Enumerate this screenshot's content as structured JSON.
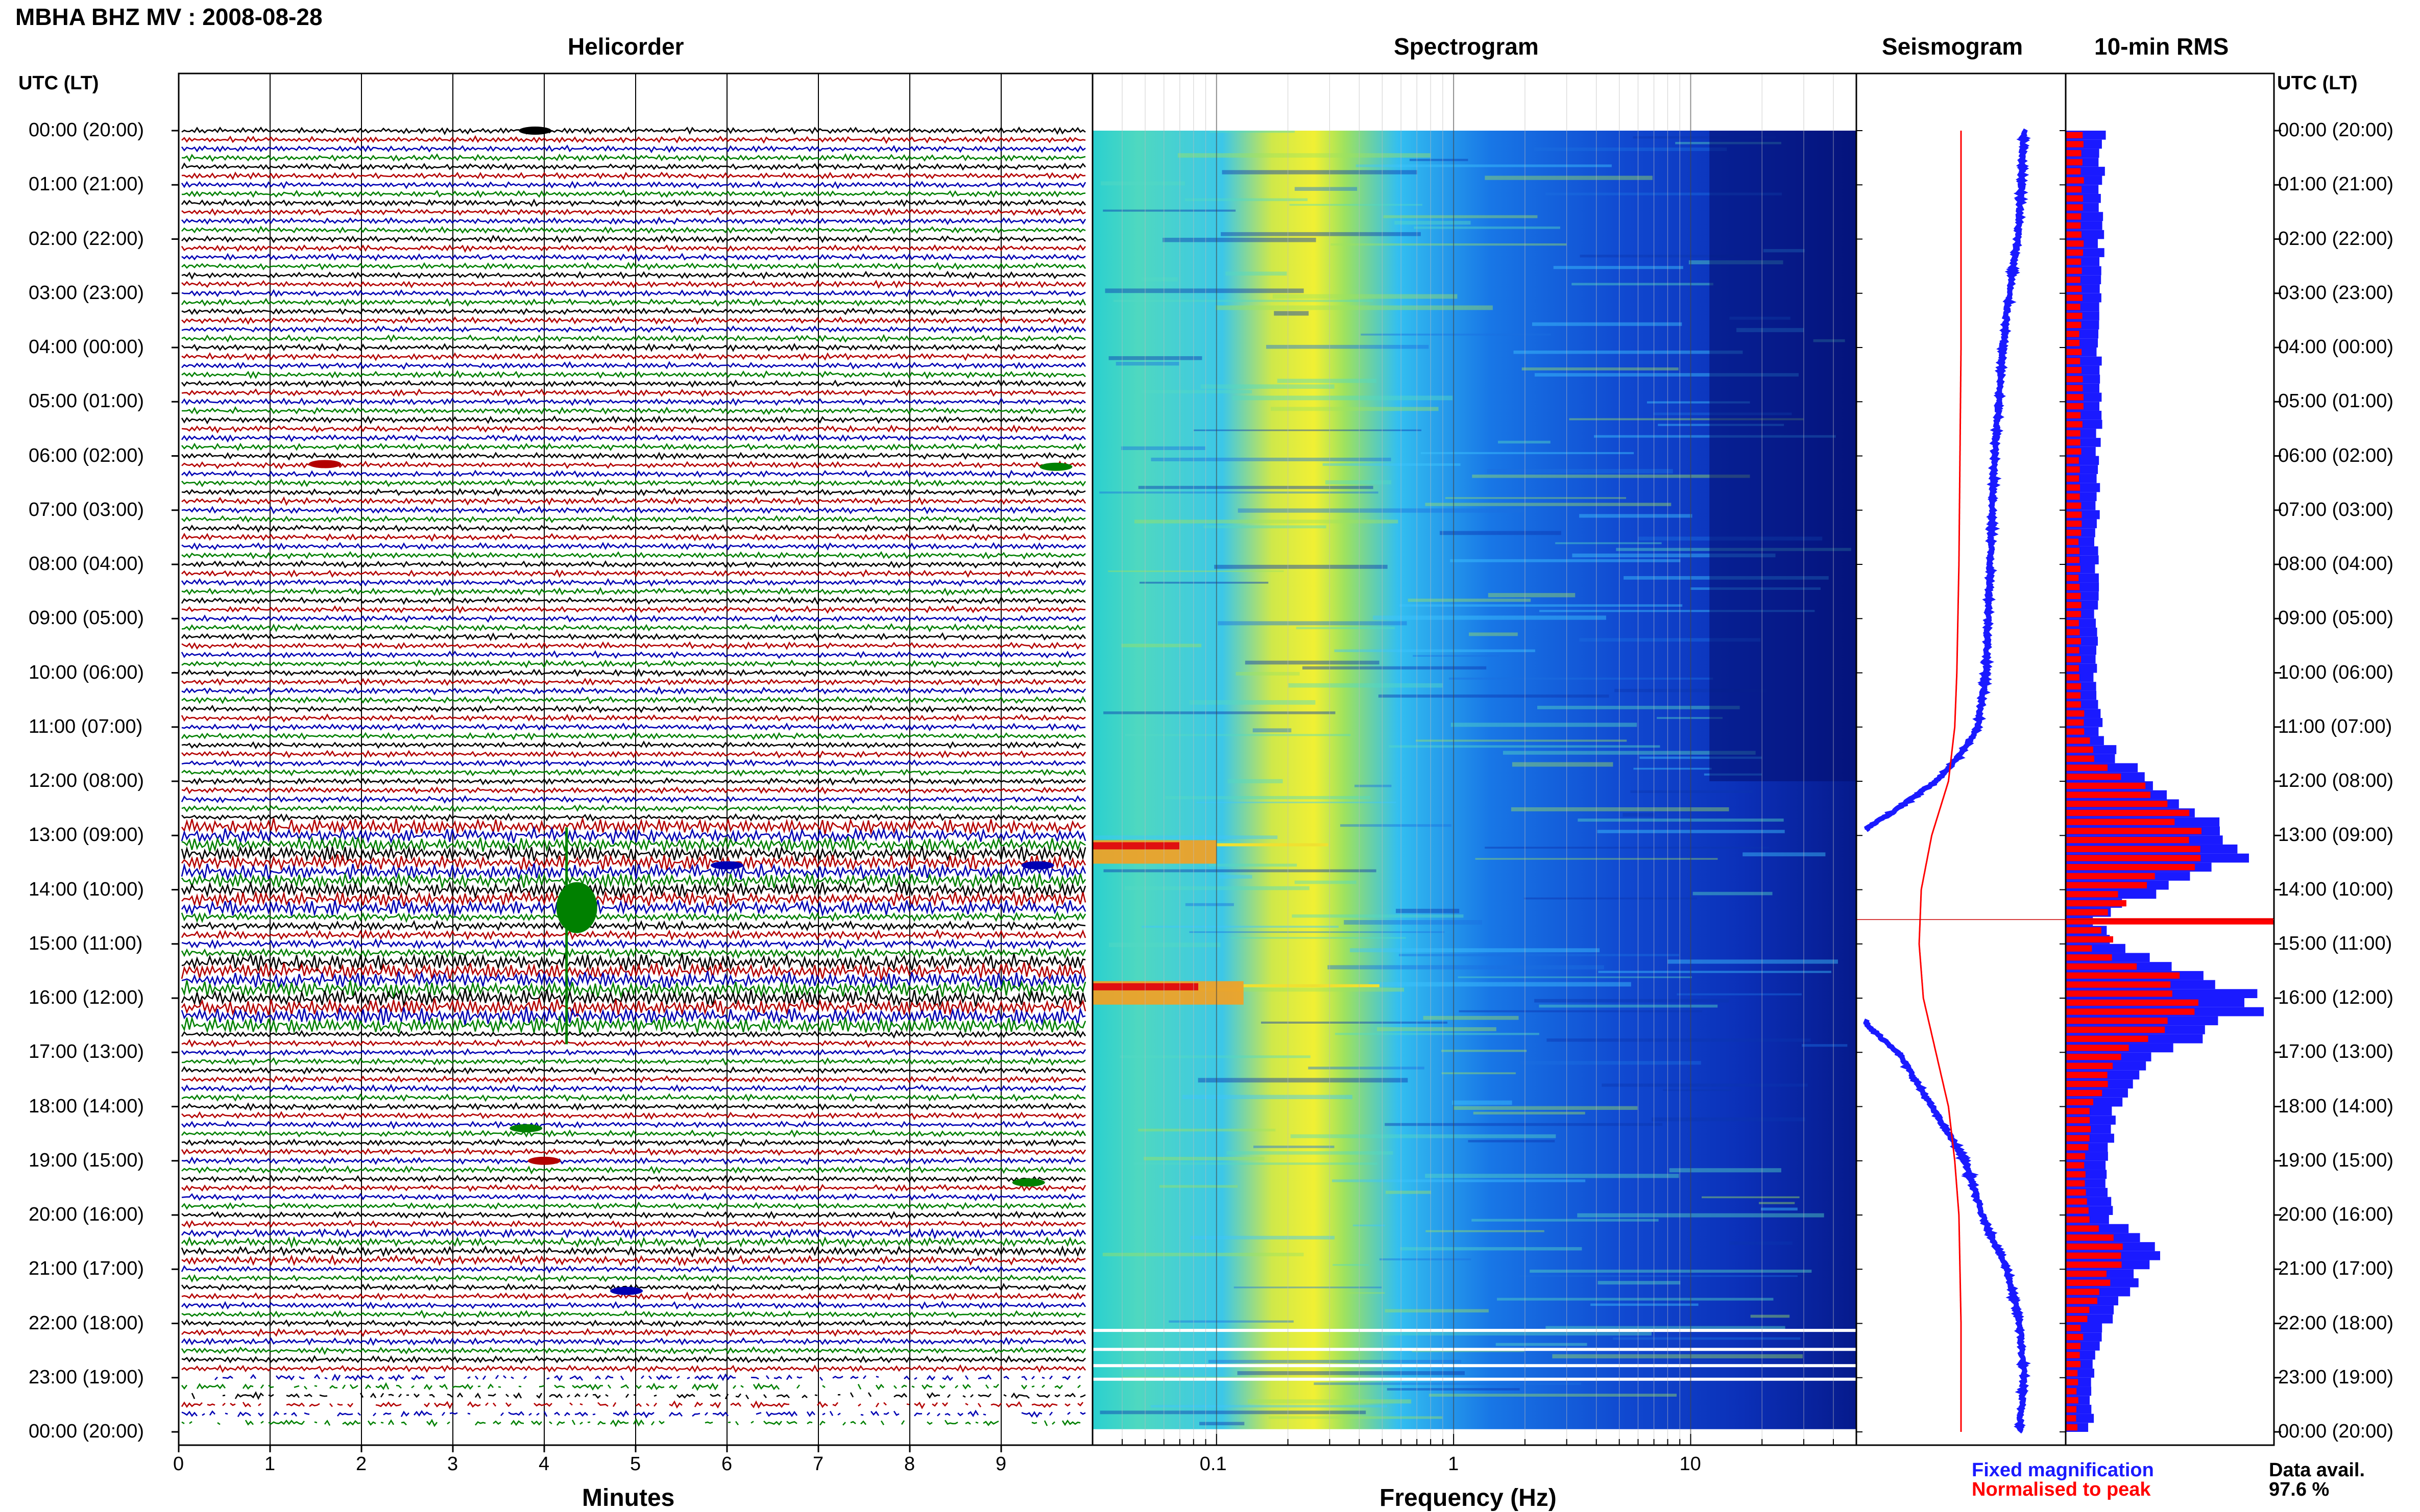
{
  "header": {
    "station_title": "MBHA BHZ MV : 2008-08-28",
    "time_axis_label": "UTC (LT)"
  },
  "panels": {
    "helicorder": "Helicorder",
    "spectrogram": "Spectrogram",
    "seismogram": "Seismogram",
    "rms": "10-min RMS"
  },
  "legend": {
    "fixed": "Fixed magnification",
    "normalised": "Normalised to peak",
    "fixed_color": "#1a1aff",
    "normalised_color": "#ff0000"
  },
  "data_availability": {
    "label": "Data avail.",
    "value": "97.6 %"
  },
  "chart_data": [
    {
      "type": "line",
      "name": "helicorder",
      "title": "Helicorder",
      "xlabel": "Minutes",
      "x_ticks": [
        "0",
        "1",
        "2",
        "3",
        "4",
        "5",
        "6",
        "7",
        "8",
        "9"
      ],
      "xlim": [
        0,
        10
      ],
      "rows_per_hour": 6,
      "trace_colors": [
        "#000000",
        "#b30000",
        "#0000b3",
        "#008000"
      ],
      "time_labels": [
        "00:00 (20:00)",
        "01:00 (21:00)",
        "02:00 (22:00)",
        "03:00 (23:00)",
        "04:00 (00:00)",
        "05:00 (01:00)",
        "06:00 (02:00)",
        "07:00 (03:00)",
        "08:00 (04:00)",
        "09:00 (05:00)",
        "10:00 (06:00)",
        "11:00 (07:00)",
        "12:00 (08:00)",
        "13:00 (09:00)",
        "14:00 (10:00)",
        "15:00 (11:00)",
        "16:00 (12:00)",
        "17:00 (13:00)",
        "18:00 (14:00)",
        "19:00 (15:00)",
        "20:00 (16:00)",
        "21:00 (17:00)",
        "22:00 (18:00)",
        "23:00 (19:00)",
        "00:00 (20:00)"
      ],
      "events": [
        {
          "hour": 14.2,
          "minute": 4.3,
          "note": "large event"
        }
      ]
    },
    {
      "type": "heatmap",
      "name": "spectrogram",
      "title": "Spectrogram",
      "xlabel": "Frequency (Hz)",
      "x_scale": "log",
      "x_ticks": [
        "0.1",
        "1",
        "10"
      ],
      "xlim": [
        0.03,
        50
      ],
      "colormap": "jet",
      "dominant_band_hz": 0.25,
      "anomalies": [
        {
          "hour": 13.2,
          "freq_range_hz": [
            0.03,
            0.1
          ]
        },
        {
          "hour": 15.8,
          "freq_range_hz": [
            0.03,
            0.13
          ]
        }
      ]
    },
    {
      "type": "line",
      "name": "seismogram",
      "title": "Seismogram",
      "series": [
        {
          "name": "Fixed magnification",
          "color": "#1a1aff",
          "hours": [
            0,
            1,
            2,
            3,
            4,
            5,
            6,
            7,
            8,
            9,
            10,
            11,
            11.5,
            12,
            12.5,
            13,
            14,
            15,
            16,
            16.5,
            17,
            18,
            19,
            20,
            21,
            22,
            23,
            24
          ],
          "values": [
            0.8,
            0.79,
            0.77,
            0.73,
            0.7,
            0.68,
            0.66,
            0.65,
            0.64,
            0.63,
            0.62,
            0.58,
            0.5,
            0.38,
            0.2,
            0.0,
            0.0,
            0.0,
            0.0,
            0.05,
            0.2,
            0.36,
            0.52,
            0.6,
            0.72,
            0.78,
            0.8,
            0.78
          ]
        },
        {
          "name": "Normalised to peak",
          "color": "#ff0000",
          "hours": [
            0,
            4,
            8,
            10,
            11,
            12,
            13,
            14,
            15,
            16,
            17,
            18,
            19,
            20,
            22,
            24
          ],
          "values": [
            0.5,
            0.5,
            0.49,
            0.48,
            0.47,
            0.44,
            0.36,
            0.31,
            0.3,
            0.32,
            0.38,
            0.44,
            0.47,
            0.49,
            0.5,
            0.5
          ]
        }
      ]
    },
    {
      "type": "bar",
      "name": "rms",
      "title": "10-min RMS",
      "series": [
        {
          "name": "Fixed magnification",
          "color": "#1a1aff",
          "hours": [
            0,
            1,
            2,
            3,
            4,
            5,
            6,
            7,
            8,
            9,
            10,
            11,
            11.5,
            12,
            12.5,
            13,
            13.3,
            14,
            14.5,
            15,
            15.5,
            16,
            16.3,
            17,
            18,
            19,
            20,
            20.5,
            21,
            22,
            23,
            24
          ],
          "values": [
            0.18,
            0.17,
            0.17,
            0.18,
            0.16,
            0.17,
            0.16,
            0.16,
            0.15,
            0.15,
            0.15,
            0.17,
            0.25,
            0.45,
            0.68,
            0.82,
            0.92,
            0.4,
            0.12,
            0.3,
            0.7,
            0.95,
            0.85,
            0.4,
            0.25,
            0.18,
            0.22,
            0.45,
            0.35,
            0.18,
            0.13,
            0.12
          ]
        },
        {
          "name": "Normalised to peak",
          "color": "#ff0000",
          "hours": [
            0,
            1,
            2,
            3,
            4,
            5,
            6,
            7,
            8,
            9,
            10,
            11,
            11.5,
            12,
            12.5,
            13,
            13.3,
            14,
            14.5,
            15,
            15.5,
            16,
            16.3,
            17,
            18,
            19,
            20,
            20.5,
            21,
            22,
            23,
            24
          ],
          "values": [
            0.08,
            0.08,
            0.08,
            0.08,
            0.07,
            0.08,
            0.07,
            0.07,
            0.07,
            0.07,
            0.07,
            0.09,
            0.15,
            0.35,
            0.55,
            0.62,
            0.7,
            0.25,
            1.0,
            0.12,
            0.5,
            0.62,
            0.55,
            0.25,
            0.12,
            0.09,
            0.12,
            0.3,
            0.22,
            0.08,
            0.06,
            0.05
          ]
        }
      ]
    }
  ]
}
